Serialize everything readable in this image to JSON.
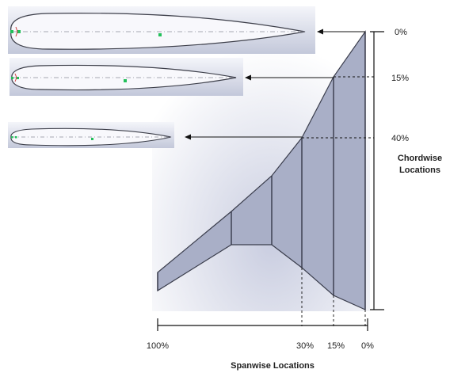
{
  "chordwise": {
    "title_line1": "Chordwise",
    "title_line2": "Locations",
    "labels": [
      "0%",
      "15%",
      "40%"
    ]
  },
  "spanwise": {
    "title": "Spanwise Locations",
    "labels": [
      "100%",
      "30%",
      "15%",
      "0%"
    ]
  },
  "airfoils": [
    {
      "name": "airfoil-section-root"
    },
    {
      "name": "airfoil-section-mid"
    },
    {
      "name": "airfoil-section-outboard"
    }
  ],
  "colors": {
    "wing_fill": "#a8aec6",
    "wing_stroke": "#3a3d4c",
    "panel_bg_top": "#ffffff",
    "panel_bg_bottom": "#b8bfd4",
    "airfoil_fill": "#f6f6fb",
    "marker_green": "#22c05a",
    "line": "#111111"
  }
}
